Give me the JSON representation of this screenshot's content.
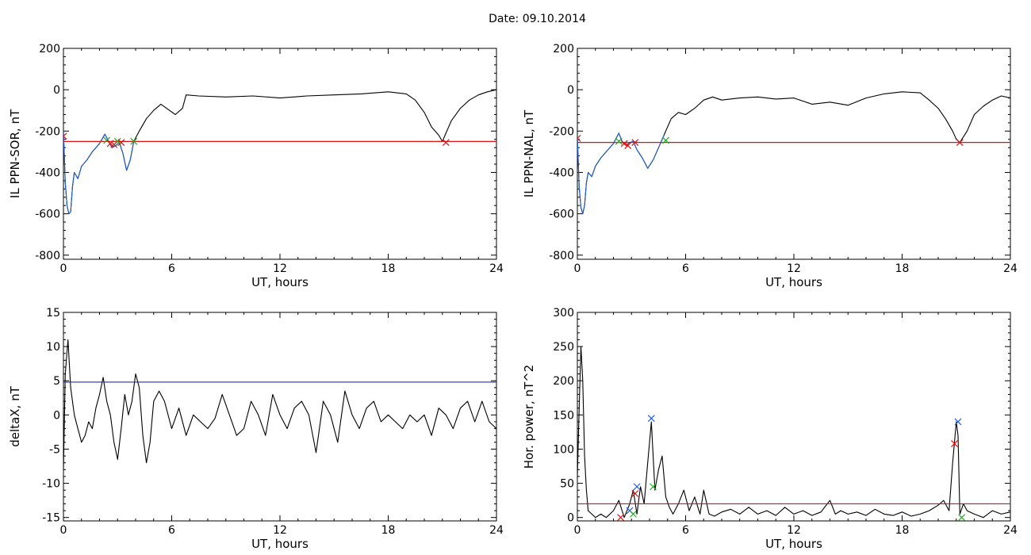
{
  "title": "Date:  09.10.2014",
  "colors": {
    "trace": "#000000",
    "highlight": "#1f5fd0",
    "threshold_red": "#dd1111",
    "threshold_blue": "#2233aa",
    "marker_green": "#22aa22",
    "marker_red": "#dd1111",
    "marker_blue": "#1f5fd0"
  },
  "chart_data": [
    {
      "id": "p1",
      "type": "line",
      "xlabel": "UT, hours",
      "ylabel": "IL PPN-SOR, nT",
      "xlim": [
        0,
        24
      ],
      "ylim": [
        -820,
        200
      ],
      "xticks": [
        0,
        6,
        12,
        18,
        24
      ],
      "yticks": [
        -800,
        -600,
        -400,
        -200,
        0,
        200
      ],
      "threshold": {
        "y": -250,
        "color": "red"
      },
      "series": [
        {
          "x": [
            0,
            0.1,
            0.2,
            0.3,
            0.4,
            0.5,
            0.6,
            0.8,
            1.0,
            1.3,
            1.6,
            2.0,
            2.3,
            2.5,
            2.7,
            2.9,
            3.1,
            3.3,
            3.5,
            3.7,
            3.9,
            4.2,
            4.6,
            5.0,
            5.4,
            5.8,
            6.2,
            6.6,
            6.8,
            7.5,
            9,
            10.5,
            12,
            13.5,
            15,
            16.5,
            18,
            19,
            19.5,
            20,
            20.4,
            20.8,
            21.0,
            21.2,
            21.5,
            22,
            22.5,
            23,
            23.5,
            24
          ],
          "y": [
            -200,
            -450,
            -560,
            -600,
            -590,
            -470,
            -400,
            -430,
            -370,
            -340,
            -300,
            -260,
            -215,
            -250,
            -280,
            -270,
            -255,
            -310,
            -390,
            -340,
            -250,
            -200,
            -140,
            -100,
            -70,
            -95,
            -120,
            -90,
            -25,
            -30,
            -35,
            -30,
            -40,
            -30,
            -25,
            -20,
            -10,
            -20,
            -50,
            -110,
            -180,
            -220,
            -250,
            -210,
            -150,
            -90,
            -50,
            -25,
            -10,
            0
          ],
          "color": "black"
        },
        {
          "x": [
            0,
            0.1,
            0.2,
            0.3,
            0.4,
            0.5,
            0.6,
            0.8,
            1.0,
            1.3,
            1.6,
            2.0,
            2.3,
            2.5,
            2.7,
            2.9,
            3.1,
            3.3,
            3.5,
            3.7,
            3.9
          ],
          "y": [
            -200,
            -450,
            -560,
            -600,
            -590,
            -470,
            -400,
            -430,
            -370,
            -340,
            -300,
            -260,
            -215,
            -250,
            -280,
            -270,
            -255,
            -310,
            -390,
            -340,
            -250
          ],
          "color": "blue"
        }
      ],
      "markers": [
        {
          "x": 0.0,
          "y": -225,
          "color": "red"
        },
        {
          "x": 2.4,
          "y": -245,
          "color": "green"
        },
        {
          "x": 2.6,
          "y": -260,
          "color": "red"
        },
        {
          "x": 2.8,
          "y": -265,
          "color": "red"
        },
        {
          "x": 3.0,
          "y": -250,
          "color": "green"
        },
        {
          "x": 3.2,
          "y": -255,
          "color": "red"
        },
        {
          "x": 3.9,
          "y": -250,
          "color": "green"
        },
        {
          "x": 21.2,
          "y": -255,
          "color": "red"
        }
      ]
    },
    {
      "id": "p2",
      "type": "line",
      "xlabel": "UT, hours",
      "ylabel": "IL PPN-NAL, nT",
      "xlim": [
        0,
        24
      ],
      "ylim": [
        -820,
        200
      ],
      "xticks": [
        0,
        6,
        12,
        18,
        24
      ],
      "yticks": [
        -800,
        -600,
        -400,
        -200,
        0,
        200
      ],
      "threshold": {
        "y": -255,
        "color": "red"
      },
      "series": [
        {
          "x": [
            0,
            0.1,
            0.2,
            0.3,
            0.4,
            0.5,
            0.6,
            0.8,
            1.0,
            1.3,
            1.6,
            2.0,
            2.3,
            2.5,
            2.7,
            2.9,
            3.1,
            3.3,
            3.6,
            3.9,
            4.2,
            4.5,
            4.8,
            5.2,
            5.6,
            6.0,
            6.5,
            7.0,
            7.5,
            8,
            9,
            10,
            11,
            12,
            13,
            14,
            15,
            16,
            17,
            18,
            19,
            19.5,
            20,
            20.4,
            20.8,
            21.0,
            21.2,
            21.6,
            22,
            22.5,
            23,
            23.5,
            24
          ],
          "y": [
            -230,
            -470,
            -570,
            -600,
            -560,
            -450,
            -400,
            -420,
            -370,
            -330,
            -300,
            -260,
            -210,
            -255,
            -270,
            -255,
            -250,
            -290,
            -330,
            -380,
            -340,
            -280,
            -220,
            -140,
            -110,
            -120,
            -90,
            -50,
            -35,
            -50,
            -40,
            -35,
            -45,
            -40,
            -70,
            -60,
            -75,
            -40,
            -20,
            -10,
            -15,
            -50,
            -90,
            -140,
            -200,
            -240,
            -255,
            -200,
            -120,
            -80,
            -50,
            -30,
            -40
          ],
          "color": "black"
        },
        {
          "x": [
            0,
            0.1,
            0.2,
            0.3,
            0.4,
            0.5,
            0.6,
            0.8,
            1.0,
            1.3,
            1.6,
            2.0,
            2.3,
            2.5,
            2.7,
            2.9,
            3.1,
            3.3,
            3.6,
            3.9,
            4.2,
            4.5,
            4.8
          ],
          "y": [
            -230,
            -470,
            -570,
            -600,
            -560,
            -450,
            -400,
            -420,
            -370,
            -330,
            -300,
            -260,
            -210,
            -255,
            -270,
            -255,
            -250,
            -290,
            -330,
            -380,
            -340,
            -280,
            -220
          ],
          "color": "blue"
        }
      ],
      "markers": [
        {
          "x": 0.0,
          "y": -235,
          "color": "red"
        },
        {
          "x": 2.3,
          "y": -250,
          "color": "green"
        },
        {
          "x": 2.6,
          "y": -260,
          "color": "red"
        },
        {
          "x": 2.8,
          "y": -270,
          "color": "red"
        },
        {
          "x": 3.2,
          "y": -255,
          "color": "red"
        },
        {
          "x": 4.9,
          "y": -245,
          "color": "green"
        },
        {
          "x": 21.2,
          "y": -255,
          "color": "red"
        }
      ]
    },
    {
      "id": "p3",
      "type": "line",
      "xlabel": "UT, hours",
      "ylabel": "deltaX, nT",
      "xlim": [
        0,
        24
      ],
      "ylim": [
        -15.5,
        15
      ],
      "xticks": [
        0,
        6,
        12,
        18,
        24
      ],
      "yticks": [
        -15,
        -10,
        -5,
        0,
        5,
        10,
        15
      ],
      "threshold": {
        "y": 4.8,
        "color": "blue"
      },
      "series": [
        {
          "x": [
            0,
            0.1,
            0.25,
            0.4,
            0.6,
            0.8,
            1.0,
            1.2,
            1.4,
            1.6,
            1.8,
            2.0,
            2.2,
            2.4,
            2.6,
            2.8,
            3.0,
            3.2,
            3.4,
            3.6,
            3.8,
            4.0,
            4.2,
            4.4,
            4.6,
            4.8,
            5.0,
            5.3,
            5.6,
            6.0,
            6.4,
            6.8,
            7.2,
            7.6,
            8.0,
            8.4,
            8.8,
            9.2,
            9.6,
            10.0,
            10.4,
            10.8,
            11.2,
            11.6,
            12.0,
            12.4,
            12.8,
            13.2,
            13.6,
            14.0,
            14.4,
            14.8,
            15.2,
            15.6,
            16.0,
            16.4,
            16.8,
            17.2,
            17.6,
            18.0,
            18.4,
            18.8,
            19.2,
            19.6,
            20.0,
            20.4,
            20.8,
            21.2,
            21.6,
            22.0,
            22.4,
            22.8,
            23.2,
            23.6,
            24.0
          ],
          "y": [
            -8,
            6,
            11,
            4,
            0,
            -2,
            -4,
            -3,
            -1,
            -2,
            1,
            3,
            5.5,
            2,
            0,
            -4,
            -6.5,
            -2,
            3,
            0,
            2,
            6,
            4,
            -3,
            -7,
            -4,
            2,
            3.5,
            2,
            -2,
            1,
            -3,
            0,
            -1,
            -2,
            -0.5,
            3,
            0,
            -3,
            -2,
            2,
            0,
            -3,
            3,
            0,
            -2,
            1,
            2,
            0,
            -5.5,
            2,
            0,
            -4,
            3.5,
            0,
            -2,
            1,
            2,
            -1,
            0,
            -1,
            -2,
            0,
            -1,
            0,
            -3,
            1,
            0,
            -2,
            1,
            2,
            -1,
            2,
            -1,
            -2
          ],
          "color": "black"
        }
      ],
      "markers": []
    },
    {
      "id": "p4",
      "type": "line",
      "xlabel": "UT, hours",
      "ylabel": "Hor. power, nT^2",
      "xlim": [
        0,
        24
      ],
      "ylim": [
        -5,
        300
      ],
      "xticks": [
        0,
        6,
        12,
        18,
        24
      ],
      "yticks": [
        0,
        50,
        100,
        150,
        200,
        250,
        300
      ],
      "threshold": {
        "y": 20,
        "color": "red"
      },
      "series": [
        {
          "x": [
            0,
            0.1,
            0.2,
            0.3,
            0.4,
            0.5,
            0.6,
            0.8,
            1.0,
            1.3,
            1.6,
            2.0,
            2.3,
            2.6,
            2.9,
            3.1,
            3.3,
            3.5,
            3.7,
            3.9,
            4.1,
            4.3,
            4.5,
            4.7,
            4.9,
            5.1,
            5.3,
            5.6,
            5.9,
            6.2,
            6.5,
            6.8,
            7.0,
            7.3,
            7.6,
            8,
            8.5,
            9,
            9.5,
            10,
            10.5,
            11,
            11.5,
            12,
            12.5,
            13,
            13.5,
            14,
            14.3,
            14.6,
            15,
            15.5,
            16,
            16.5,
            17,
            17.5,
            18,
            18.5,
            19,
            19.5,
            20,
            20.3,
            20.6,
            20.8,
            21.0,
            21.1,
            21.2,
            21.4,
            21.6,
            22,
            22.5,
            23,
            23.5,
            24
          ],
          "y": [
            60,
            160,
            250,
            200,
            90,
            40,
            10,
            5,
            0,
            5,
            0,
            10,
            25,
            0,
            20,
            40,
            5,
            45,
            20,
            80,
            140,
            40,
            70,
            90,
            30,
            15,
            5,
            20,
            40,
            10,
            30,
            5,
            40,
            5,
            2,
            8,
            12,
            5,
            15,
            5,
            10,
            3,
            15,
            5,
            10,
            3,
            8,
            25,
            5,
            10,
            5,
            8,
            3,
            12,
            5,
            3,
            8,
            2,
            5,
            10,
            18,
            25,
            10,
            80,
            140,
            120,
            5,
            20,
            10,
            5,
            0,
            10,
            5,
            8
          ],
          "color": "black"
        }
      ],
      "markers": [
        {
          "x": 2.4,
          "y": 0,
          "color": "red"
        },
        {
          "x": 2.9,
          "y": 10,
          "color": "blue"
        },
        {
          "x": 3.1,
          "y": 5,
          "color": "green"
        },
        {
          "x": 3.2,
          "y": 35,
          "color": "red"
        },
        {
          "x": 3.3,
          "y": 45,
          "color": "blue"
        },
        {
          "x": 4.1,
          "y": 145,
          "color": "blue"
        },
        {
          "x": 4.2,
          "y": 45,
          "color": "green"
        },
        {
          "x": 20.9,
          "y": 108,
          "color": "red"
        },
        {
          "x": 21.1,
          "y": 140,
          "color": "blue"
        },
        {
          "x": 21.3,
          "y": 0,
          "color": "green"
        }
      ]
    }
  ]
}
